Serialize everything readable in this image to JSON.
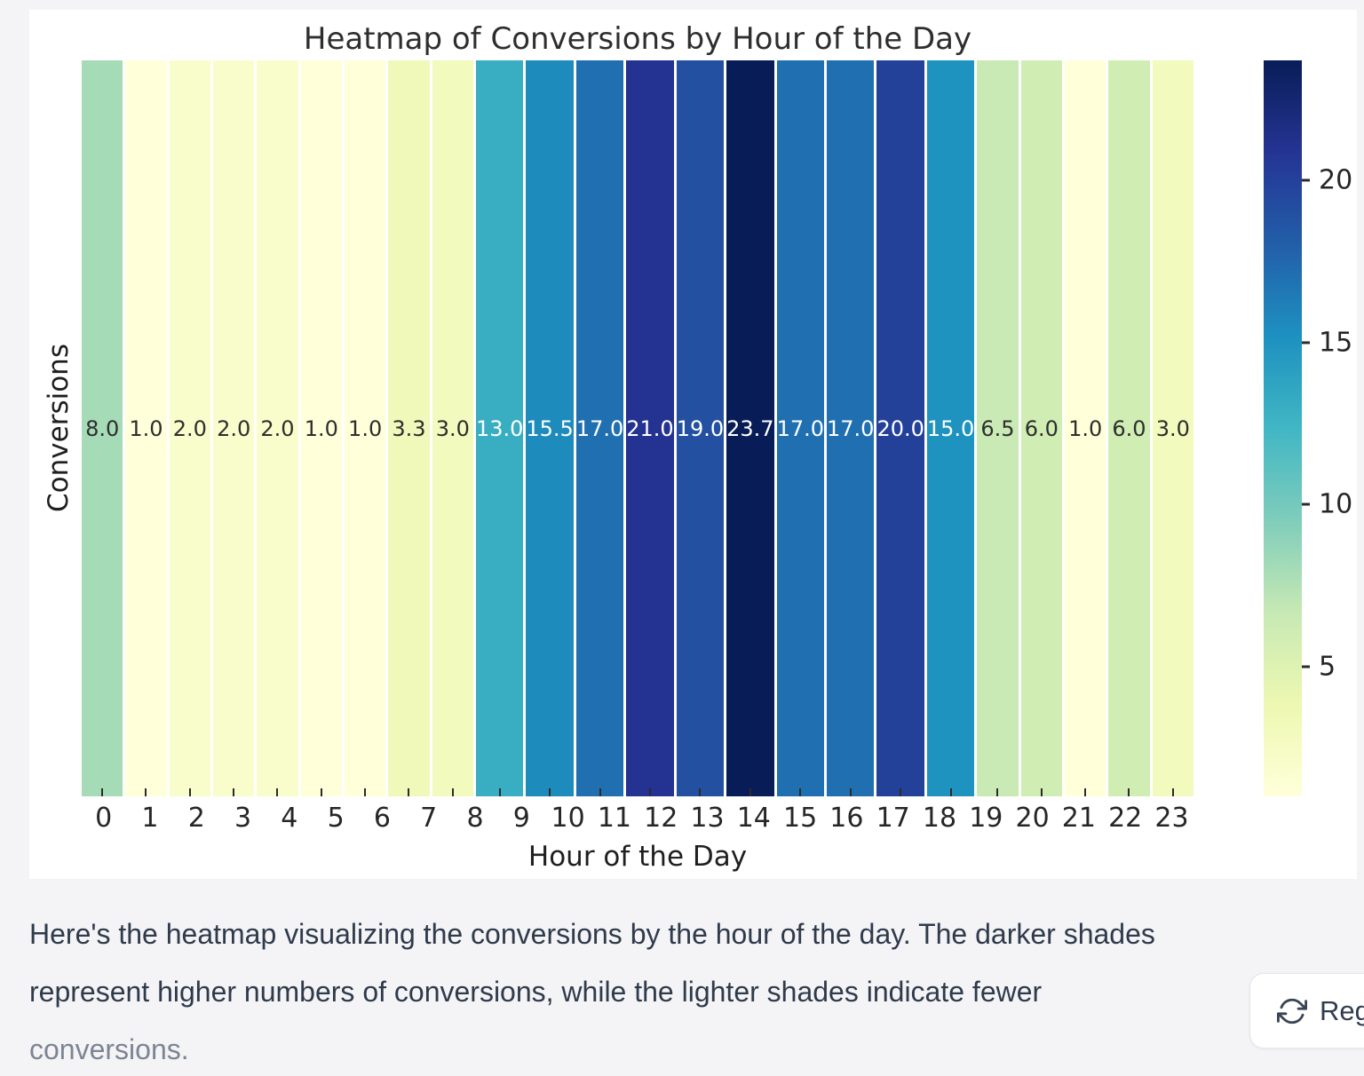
{
  "page": {
    "background": "#f4f4f6",
    "figure_background": "#ffffff"
  },
  "chart_data": {
    "type": "heatmap",
    "title": "Heatmap of Conversions by Hour of the Day",
    "xlabel": "Hour of the Day",
    "ylabel": "Conversions",
    "categories": [
      "0",
      "1",
      "2",
      "3",
      "4",
      "5",
      "6",
      "7",
      "8",
      "9",
      "10",
      "11",
      "12",
      "13",
      "14",
      "15",
      "16",
      "17",
      "18",
      "19",
      "20",
      "21",
      "22",
      "23"
    ],
    "values": [
      8.0,
      1.0,
      2.0,
      2.0,
      2.0,
      1.0,
      1.0,
      3.3,
      3.0,
      13.0,
      15.5,
      17.0,
      21.0,
      19.0,
      23.7,
      17.0,
      17.0,
      20.0,
      15.0,
      6.5,
      6.0,
      1.0,
      6.0,
      3.0
    ],
    "vmin": 1.0,
    "vmax": 23.7,
    "colorbar_ticks": [
      5,
      10,
      15,
      20
    ],
    "colormap": "YlGnBu",
    "colormap_stops": [
      "#ffffd9",
      "#edf8b1",
      "#c7e9b4",
      "#7fcdbb",
      "#41b6c4",
      "#1d91c0",
      "#225ea8",
      "#253494",
      "#081d58"
    ],
    "annotation_dark_color": "#2e2e2e",
    "annotation_light_color": "#ffffff",
    "grid": false,
    "legend_position": "colorbar-right"
  },
  "message": {
    "lines": [
      "Here's the heatmap visualizing the conversions by the hour of the day. The darker shades",
      "represent higher numbers of conversions, while the lighter shades indicate fewer",
      "conversions."
    ],
    "text_color": "#2f3a4b",
    "faded_text_color": "#7d8493"
  },
  "footer": {
    "regenerate_label": "Reg",
    "regenerate_icon": "refresh-arrows"
  }
}
